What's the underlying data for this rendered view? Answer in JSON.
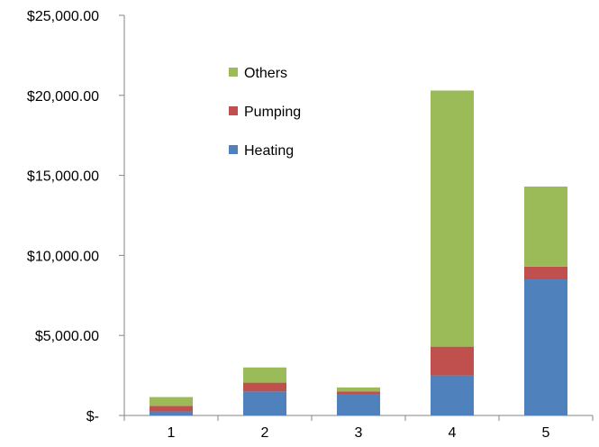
{
  "chart_data": {
    "type": "bar",
    "stacked": true,
    "categories": [
      "1",
      "2",
      "3",
      "4",
      "5"
    ],
    "series": [
      {
        "name": "Heating",
        "color": "#4f81bd",
        "values": [
          250,
          1500,
          1350,
          2500,
          8500
        ]
      },
      {
        "name": "Pumping",
        "color": "#c0504d",
        "values": [
          350,
          550,
          150,
          1800,
          800
        ]
      },
      {
        "name": "Others",
        "color": "#9bbb59",
        "values": [
          550,
          950,
          250,
          16000,
          5000
        ]
      }
    ],
    "legend_order": [
      "Others",
      "Pumping",
      "Heating"
    ],
    "legend_position": "inside-top-left",
    "y_ticks": [
      "$-",
      "$5,000.00",
      "$10,000.00",
      "$15,000.00",
      "$20,000.00",
      "$25,000.00"
    ],
    "ylim": [
      0,
      25000
    ],
    "y_step": 5000,
    "grid": false,
    "axis_color": "#868686"
  }
}
